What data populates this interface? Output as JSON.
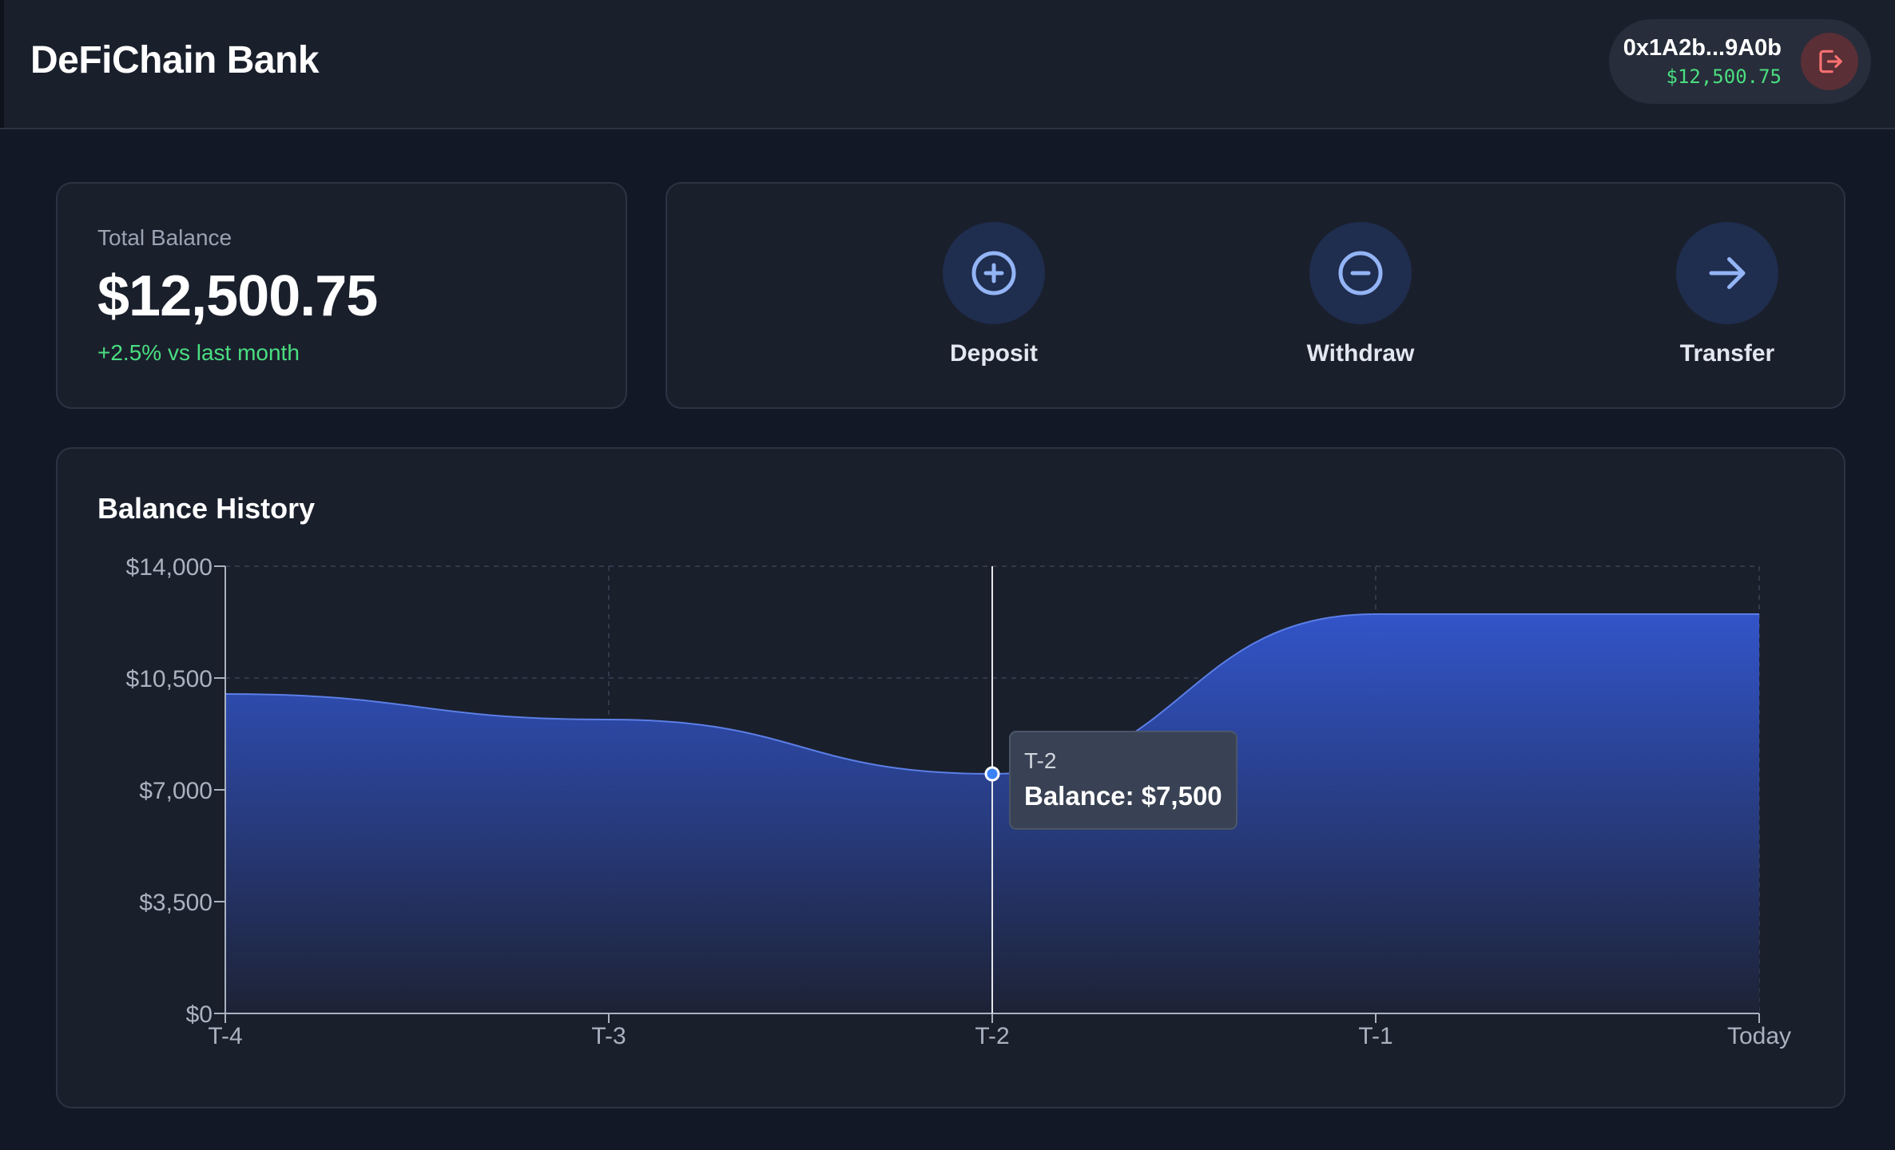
{
  "header": {
    "brand": "DeFiChain Bank",
    "wallet_address": "0x1A2b...9A0b",
    "wallet_balance": "$12,500.75",
    "logout_icon": "logout-icon"
  },
  "balance": {
    "label": "Total Balance",
    "value": "$12,500.75",
    "change": "+2.5% vs last month"
  },
  "actions": [
    {
      "label": "Deposit",
      "icon": "plus-circle-icon"
    },
    {
      "label": "Withdraw",
      "icon": "minus-circle-icon"
    },
    {
      "label": "Transfer",
      "icon": "arrow-right-icon"
    }
  ],
  "history": {
    "title": "Balance History"
  },
  "tooltip": {
    "label": "T-2",
    "value": "Balance: $7,500"
  },
  "colors": {
    "accent": "#3b5bdb",
    "positive": "#4ade80",
    "logout": "#f87171"
  },
  "chart_data": {
    "type": "area",
    "title": "Balance History",
    "categories": [
      "T-4",
      "T-3",
      "T-2",
      "T-1",
      "Today"
    ],
    "series": [
      {
        "values": [
          10000,
          9200,
          7500,
          12500,
          12500
        ]
      }
    ],
    "y_ticks": [
      "$0",
      "$3,500",
      "$7,000",
      "$10,500",
      "$14,000"
    ],
    "ylim": [
      0,
      14000
    ],
    "grid": true,
    "highlighted_point": "T-2"
  }
}
